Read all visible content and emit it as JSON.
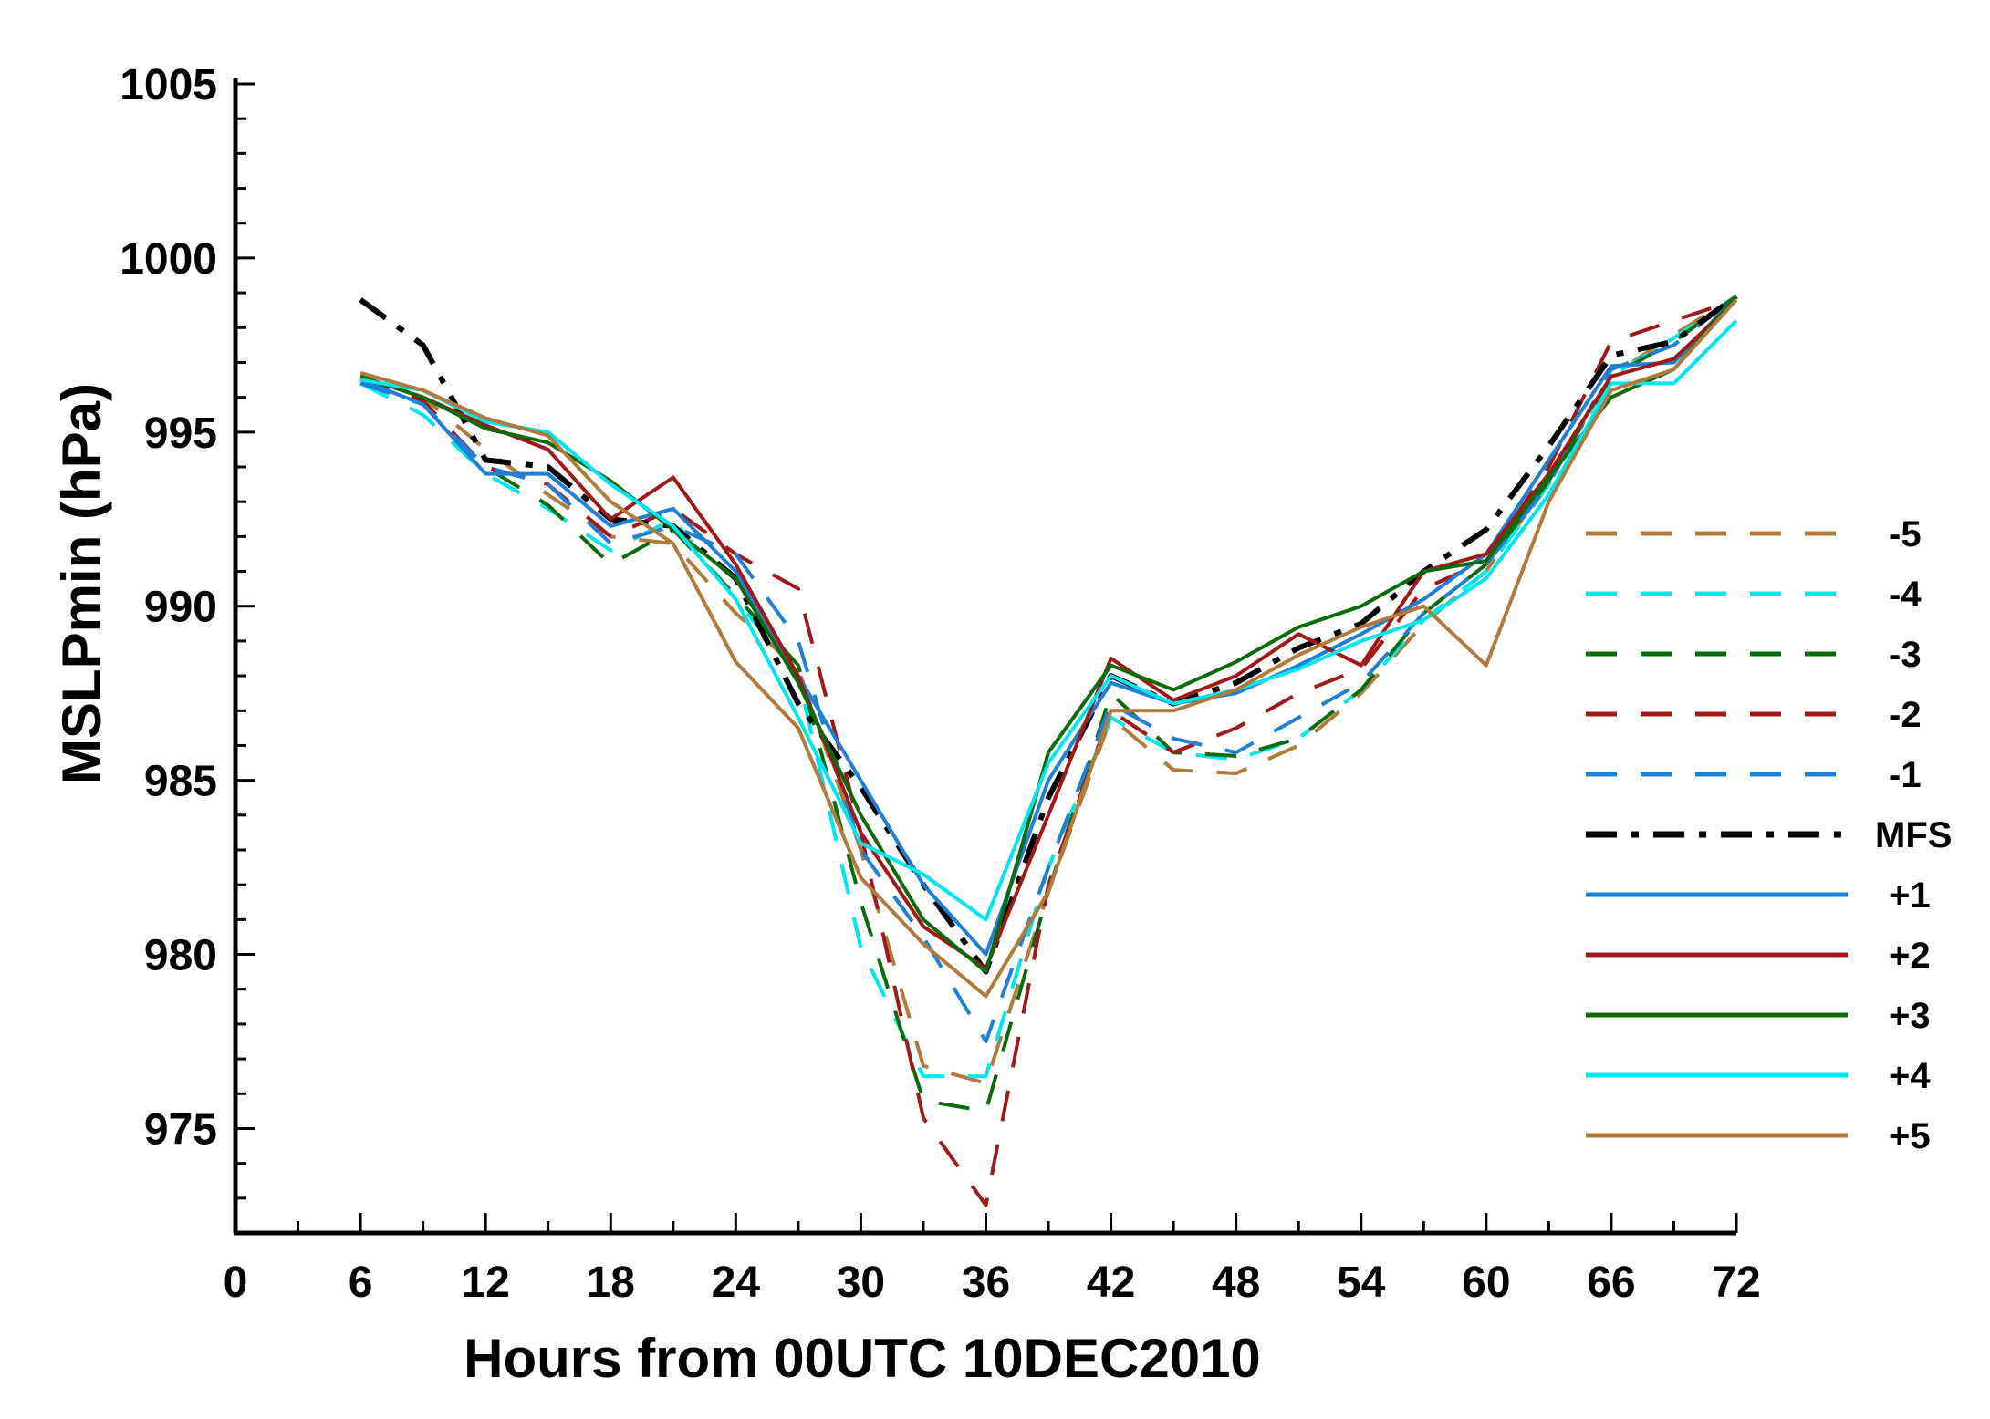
{
  "chart_data": {
    "type": "line",
    "xlabel": "Hours from 00UTC 10DEC2010",
    "ylabel": "MSLPmin (hPa)",
    "xlim": [
      0,
      72
    ],
    "ylim": [
      972,
      1005
    ],
    "xticks": [
      0,
      6,
      12,
      18,
      24,
      30,
      36,
      42,
      48,
      54,
      60,
      66,
      72
    ],
    "yticks": [
      975,
      980,
      985,
      990,
      995,
      1000,
      1005
    ],
    "grid": false,
    "legend_position": "right",
    "x": [
      6,
      9,
      12,
      15,
      18,
      21,
      24,
      27,
      30,
      33,
      36,
      39,
      42,
      45,
      48,
      51,
      54,
      57,
      60,
      63,
      66,
      69,
      72
    ],
    "series": [
      {
        "name": "-5",
        "color": "#b07a3a",
        "dash": "dash",
        "values": [
          996.6,
          996.0,
          994.5,
          993.2,
          992.0,
          991.8,
          989.8,
          988.2,
          983.0,
          976.8,
          976.3,
          981.8,
          986.8,
          985.3,
          985.2,
          986.0,
          987.5,
          989.5,
          991.0,
          993.6,
          996.6,
          997.8,
          998.9
        ]
      },
      {
        "name": "-4",
        "color": "#00e5ee",
        "dash": "dash",
        "values": [
          996.4,
          995.5,
          993.8,
          992.8,
          991.6,
          992.5,
          990.2,
          988.0,
          980.2,
          976.5,
          976.5,
          982.5,
          986.8,
          985.8,
          985.6,
          986.2,
          987.6,
          989.6,
          991.0,
          993.5,
          996.6,
          997.7,
          998.9
        ]
      },
      {
        "name": "-3",
        "color": "#0b6b0b",
        "dash": "dash",
        "values": [
          996.5,
          995.8,
          994.0,
          992.9,
          991.2,
          992.2,
          990.3,
          988.3,
          981.5,
          975.8,
          975.5,
          981.8,
          987.5,
          985.8,
          985.7,
          986.2,
          987.6,
          989.8,
          991.2,
          993.6,
          996.6,
          997.6,
          998.9
        ]
      },
      {
        "name": "-2",
        "color": "#a01818",
        "dash": "dash",
        "values": [
          996.6,
          995.9,
          994.0,
          993.5,
          992.0,
          992.8,
          991.5,
          990.5,
          983.5,
          975.3,
          972.8,
          982.0,
          987.0,
          985.8,
          986.5,
          987.5,
          988.2,
          990.5,
          991.3,
          994.0,
          997.6,
          998.2,
          998.8
        ]
      },
      {
        "name": "-1",
        "color": "#1e7fd6",
        "dash": "dash",
        "values": [
          996.4,
          995.8,
          994.0,
          993.5,
          991.8,
          992.3,
          991.5,
          989.0,
          983.0,
          980.5,
          977.5,
          982.5,
          987.2,
          986.2,
          985.8,
          986.8,
          987.8,
          989.8,
          991.2,
          993.5,
          996.8,
          997.5,
          998.9
        ]
      },
      {
        "name": "MFS",
        "color": "#000000",
        "dash": "dashdot",
        "values": [
          998.8,
          997.5,
          994.2,
          994.0,
          992.5,
          992.3,
          990.8,
          987.2,
          984.8,
          982.0,
          979.5,
          984.5,
          988.0,
          987.2,
          987.8,
          988.8,
          989.5,
          991.0,
          992.2,
          994.6,
          997.2,
          997.6,
          998.9
        ]
      },
      {
        "name": "+1",
        "color": "#1e7fd6",
        "dash": "solid",
        "values": [
          996.5,
          995.8,
          993.8,
          993.8,
          992.3,
          992.8,
          991.0,
          988.0,
          985.0,
          982.0,
          980.0,
          985.0,
          987.8,
          987.2,
          987.5,
          988.3,
          989.2,
          990.2,
          991.5,
          994.2,
          996.9,
          997.0,
          998.9
        ]
      },
      {
        "name": "+2",
        "color": "#a01818",
        "dash": "solid",
        "values": [
          996.6,
          996.0,
          995.2,
          994.5,
          992.5,
          993.7,
          991.2,
          988.0,
          983.5,
          980.8,
          979.6,
          984.0,
          988.5,
          987.3,
          988.0,
          989.2,
          988.3,
          991.0,
          991.5,
          993.8,
          996.6,
          997.1,
          998.8
        ]
      },
      {
        "name": "+3",
        "color": "#0b6b0b",
        "dash": "solid",
        "values": [
          996.6,
          996.0,
          995.1,
          994.7,
          993.6,
          992.2,
          990.8,
          987.8,
          984.0,
          981.0,
          979.5,
          985.8,
          988.3,
          987.6,
          988.4,
          989.4,
          990.0,
          991.0,
          991.3,
          993.7,
          996.0,
          996.8,
          998.9
        ]
      },
      {
        "name": "+4",
        "color": "#00e5ee",
        "dash": "solid",
        "values": [
          996.5,
          996.2,
          995.3,
          995.0,
          993.5,
          992.3,
          990.2,
          986.8,
          983.2,
          982.3,
          981.0,
          985.5,
          988.0,
          987.2,
          987.6,
          988.2,
          989.0,
          989.6,
          990.8,
          993.2,
          996.4,
          996.4,
          998.2
        ]
      },
      {
        "name": "+5",
        "color": "#b07a3a",
        "dash": "solid",
        "values": [
          996.7,
          996.2,
          995.4,
          994.9,
          993.0,
          991.8,
          988.4,
          986.5,
          982.2,
          980.3,
          978.8,
          981.8,
          987.0,
          987.0,
          987.6,
          988.6,
          989.4,
          990.0,
          988.3,
          993.0,
          996.2,
          996.8,
          998.8
        ]
      }
    ]
  }
}
